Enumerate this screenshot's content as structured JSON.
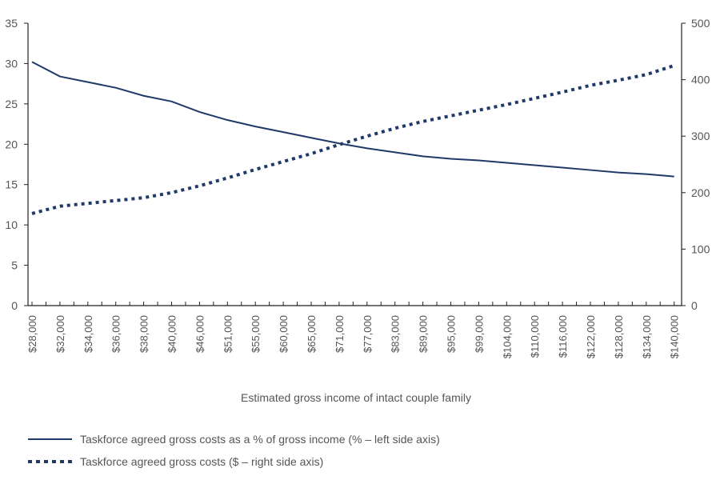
{
  "chart_data": {
    "type": "line",
    "title": "",
    "xlabel": "Estimated gross income of intact couple family",
    "ylabel_left": "",
    "ylabel_right": "",
    "ylim_left": [
      0,
      35
    ],
    "yticks_left": [
      0,
      5,
      10,
      15,
      20,
      25,
      30,
      35
    ],
    "ylim_right": [
      0,
      500
    ],
    "yticks_right": [
      0,
      100,
      200,
      300,
      400,
      500
    ],
    "grid": false,
    "legend_position": "bottom-left",
    "categories": [
      "$28,000",
      "$32,000",
      "$34,000",
      "$36,000",
      "$38,000",
      "$40,000",
      "$46,000",
      "$51,000",
      "$55,000",
      "$60,000",
      "$65,000",
      "$71,000",
      "$77,000",
      "$83,000",
      "$89,000",
      "$95,000",
      "$99,000",
      "$104,000",
      "$110,000",
      "$116,000",
      "$122,000",
      "$128,000",
      "$134,000",
      "$140,000"
    ],
    "series": [
      {
        "name": "Taskforce agreed gross costs as a % of gross income (% – left side axis)",
        "axis": "left",
        "style": "solid",
        "color": "#1f3a68",
        "values": [
          30.2,
          28.4,
          27.7,
          27.0,
          26.0,
          25.3,
          24.0,
          23.0,
          22.2,
          21.5,
          20.8,
          20.1,
          19.5,
          19.0,
          18.5,
          18.2,
          18.0,
          17.7,
          17.4,
          17.1,
          16.8,
          16.5,
          16.3,
          16.0
        ]
      },
      {
        "name": "Taskforce agreed gross costs ($ – right side axis)",
        "axis": "right",
        "style": "dotted",
        "color": "#1f3a68",
        "values": [
          163,
          176,
          181,
          186,
          191,
          200,
          212,
          226,
          241,
          255,
          269,
          285,
          300,
          314,
          326,
          336,
          346,
          356,
          367,
          378,
          390,
          399,
          409,
          425
        ]
      }
    ]
  }
}
